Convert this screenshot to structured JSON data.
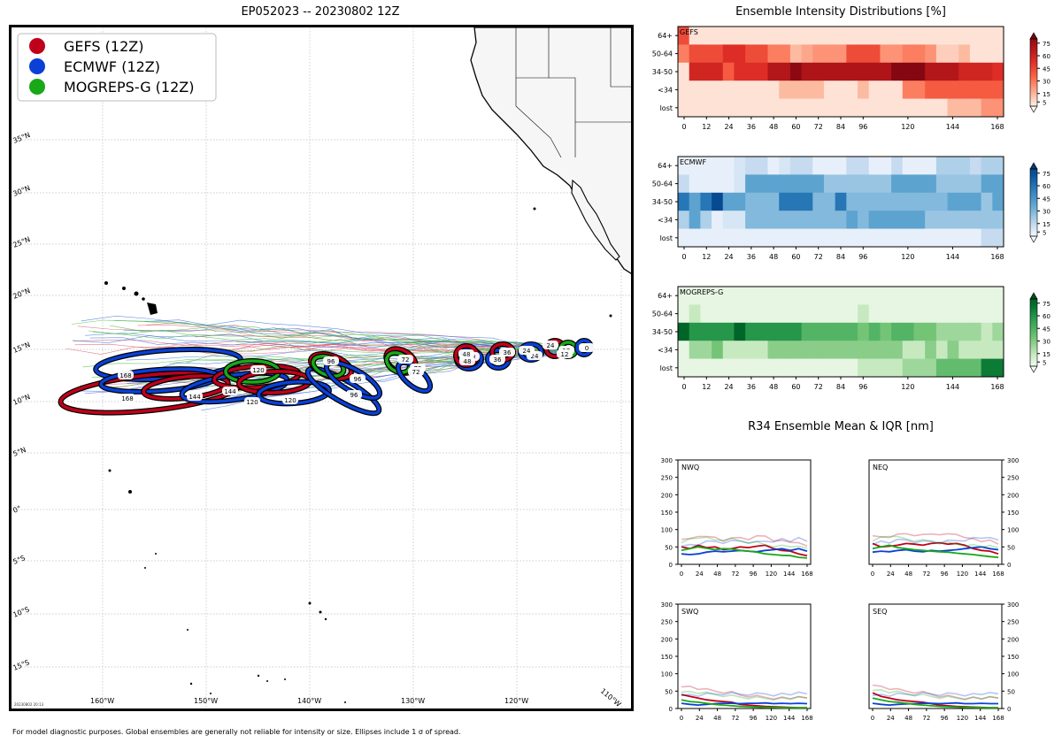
{
  "map": {
    "title": "EP052023 -- 20230802 12Z",
    "footer": "For model diagnostic purposes. Global ensembles are generally not reliable for intensity or size. Ellipses include 1 σ of spread.",
    "stamp": "20230802 20:13",
    "lat_labels": [
      "35°N",
      "30°N",
      "25°N",
      "20°N",
      "15°N",
      "10°N",
      "5°N",
      "0°",
      "5°S",
      "10°S",
      "15°S"
    ],
    "lon_labels": [
      "160°W",
      "150°W",
      "140°W",
      "130°W",
      "120°W",
      "110°W"
    ],
    "legend": [
      {
        "label": "GEFS (12Z)",
        "color": "#c0001a"
      },
      {
        "label": "ECMWF (12Z)",
        "color": "#0a40d6"
      },
      {
        "label": "MOGREPS-G (12Z)",
        "color": "#18a818"
      }
    ],
    "colors": {
      "gefs": "#c0001a",
      "ecmwf": "#0a40d6",
      "mogreps": "#18a818",
      "land": "#f6f6f6"
    },
    "track_labels": {
      "gefs": [
        "0",
        "12",
        "24",
        "36",
        "48",
        "72",
        "96",
        "120",
        "144",
        "168"
      ],
      "ecmwf": [
        "12",
        "24",
        "36",
        "48",
        "72",
        "96",
        "120",
        "144",
        "168"
      ],
      "mogreps": [
        "24",
        "48",
        "72",
        "96",
        "120"
      ]
    }
  },
  "intensity": {
    "title": "Ensemble Intensity Distributions [%]",
    "row_labels": [
      "64+",
      "50-64",
      "34-50",
      "<34",
      "lost"
    ],
    "x_ticks": [
      "0",
      "12",
      "24",
      "36",
      "48",
      "60",
      "72",
      "84",
      "96",
      "120",
      "144",
      "168"
    ],
    "x_tick_values": [
      0,
      12,
      24,
      36,
      48,
      60,
      72,
      84,
      96,
      120,
      144,
      168
    ],
    "colorbar_ticks": [
      "75",
      "60",
      "45",
      "30",
      "15",
      "5"
    ],
    "colorbar_values": [
      75,
      60,
      45,
      30,
      15,
      5
    ],
    "panels": [
      {
        "name": "GEFS",
        "cmap": "reds",
        "data": [
          [
            45,
            5,
            5,
            5,
            5,
            5,
            5,
            5,
            5,
            5,
            5,
            5,
            5,
            5,
            5,
            5,
            5,
            5,
            5,
            5,
            5,
            5,
            5,
            5,
            5,
            5,
            5,
            5,
            5
          ],
          [
            30,
            45,
            45,
            45,
            55,
            55,
            45,
            45,
            30,
            30,
            15,
            20,
            25,
            25,
            25,
            45,
            45,
            45,
            25,
            25,
            30,
            30,
            25,
            10,
            10,
            15,
            5,
            5,
            5
          ],
          [
            5,
            60,
            60,
            60,
            40,
            55,
            55,
            55,
            70,
            70,
            85,
            72,
            72,
            72,
            72,
            72,
            72,
            72,
            72,
            88,
            88,
            88,
            70,
            70,
            70,
            60,
            60,
            60,
            55
          ],
          [
            5,
            5,
            5,
            5,
            5,
            5,
            5,
            5,
            5,
            15,
            15,
            15,
            15,
            5,
            5,
            5,
            15,
            5,
            5,
            5,
            30,
            30,
            40,
            40,
            40,
            40,
            40,
            40,
            40
          ],
          [
            5,
            5,
            5,
            5,
            5,
            5,
            5,
            5,
            5,
            5,
            5,
            5,
            5,
            5,
            5,
            5,
            5,
            5,
            5,
            5,
            5,
            5,
            5,
            5,
            15,
            15,
            15,
            25,
            25
          ]
        ]
      },
      {
        "name": "ECMWF",
        "cmap": "blues",
        "data": [
          [
            5,
            5,
            5,
            5,
            5,
            10,
            15,
            15,
            5,
            10,
            15,
            15,
            5,
            5,
            5,
            15,
            15,
            5,
            5,
            15,
            5,
            5,
            5,
            20,
            20,
            20,
            15,
            20,
            20
          ],
          [
            15,
            5,
            5,
            5,
            5,
            10,
            40,
            40,
            40,
            40,
            40,
            40,
            40,
            25,
            25,
            25,
            25,
            25,
            25,
            40,
            40,
            40,
            40,
            25,
            25,
            25,
            25,
            40,
            40
          ],
          [
            60,
            40,
            60,
            80,
            40,
            40,
            30,
            30,
            30,
            60,
            60,
            60,
            30,
            30,
            60,
            30,
            30,
            30,
            30,
            30,
            30,
            30,
            30,
            30,
            40,
            40,
            40,
            25,
            40
          ],
          [
            20,
            40,
            20,
            5,
            10,
            10,
            30,
            30,
            30,
            30,
            30,
            30,
            30,
            30,
            30,
            40,
            30,
            40,
            40,
            40,
            40,
            40,
            25,
            25,
            25,
            25,
            25,
            25,
            25
          ],
          [
            5,
            5,
            5,
            5,
            5,
            5,
            5,
            5,
            5,
            5,
            5,
            5,
            5,
            5,
            5,
            5,
            5,
            5,
            5,
            5,
            5,
            5,
            5,
            5,
            5,
            5,
            5,
            15,
            15
          ]
        ]
      },
      {
        "name": "MOGREPS-G",
        "cmap": "greens",
        "data": [
          [
            5,
            5,
            5,
            5,
            5,
            5,
            5,
            5,
            5,
            5,
            5,
            5,
            5,
            5,
            5,
            5,
            5,
            5,
            5,
            5,
            5,
            5,
            5,
            5,
            5,
            5,
            5,
            5,
            5
          ],
          [
            5,
            15,
            5,
            5,
            5,
            5,
            5,
            5,
            5,
            5,
            5,
            5,
            5,
            5,
            5,
            5,
            15,
            5,
            5,
            5,
            5,
            5,
            5,
            5,
            5,
            5,
            5,
            5,
            5
          ],
          [
            80,
            60,
            60,
            60,
            60,
            80,
            60,
            60,
            60,
            60,
            60,
            45,
            45,
            45,
            45,
            45,
            35,
            45,
            35,
            45,
            45,
            35,
            35,
            25,
            25,
            25,
            25,
            15,
            25
          ],
          [
            5,
            25,
            25,
            35,
            15,
            15,
            15,
            15,
            30,
            30,
            30,
            30,
            30,
            30,
            30,
            30,
            30,
            30,
            30,
            30,
            15,
            15,
            30,
            15,
            30,
            15,
            15,
            15,
            15
          ],
          [
            5,
            5,
            5,
            5,
            5,
            5,
            5,
            5,
            5,
            5,
            5,
            5,
            5,
            5,
            5,
            5,
            15,
            15,
            15,
            15,
            25,
            25,
            25,
            40,
            40,
            40,
            40,
            70,
            70
          ]
        ]
      }
    ]
  },
  "r34": {
    "title": "R34 Ensemble Mean & IQR [nm]",
    "y_ticks": [
      "300",
      "250",
      "200",
      "150",
      "100",
      "50",
      "0"
    ],
    "y_tick_values": [
      300,
      250,
      200,
      150,
      100,
      50,
      0
    ],
    "x_ticks": [
      "0",
      "24",
      "48",
      "72",
      "96",
      "120",
      "144",
      "168"
    ],
    "x_tick_values": [
      0,
      24,
      48,
      72,
      96,
      120,
      144,
      168
    ],
    "panels": [
      {
        "name": "NWQ",
        "side": "left",
        "series": [
          {
            "model": "gefs",
            "values": [
              50,
              45,
              55,
              48,
              50,
              42,
              45,
              50,
              48,
              52,
              55,
              45,
              40,
              38,
              30,
              25
            ]
          },
          {
            "model": "ecmwf",
            "values": [
              30,
              28,
              30,
              35,
              38,
              36,
              38,
              40,
              38,
              36,
              40,
              42,
              45,
              40,
              45,
              38
            ]
          },
          {
            "model": "mogreps",
            "values": [
              40,
              45,
              50,
              46,
              42,
              45,
              44,
              40,
              38,
              35,
              30,
              28,
              26,
              25,
              20,
              18
            ]
          }
        ]
      },
      {
        "name": "NEQ",
        "side": "right",
        "series": [
          {
            "model": "gefs",
            "values": [
              60,
              50,
              52,
              55,
              60,
              58,
              55,
              60,
              62,
              58,
              60,
              55,
              45,
              40,
              38,
              30
            ]
          },
          {
            "model": "ecmwf",
            "values": [
              35,
              38,
              36,
              40,
              42,
              38,
              36,
              40,
              38,
              40,
              42,
              45,
              48,
              50,
              45,
              42
            ]
          },
          {
            "model": "mogreps",
            "values": [
              45,
              50,
              55,
              48,
              45,
              42,
              40,
              38,
              36,
              35,
              32,
              30,
              28,
              25,
              22,
              20
            ]
          }
        ]
      },
      {
        "name": "SWQ",
        "side": "left",
        "series": [
          {
            "model": "gefs",
            "values": [
              40,
              35,
              30,
              25,
              22,
              20,
              18,
              12,
              10,
              8,
              6,
              5,
              4,
              3,
              2,
              2
            ]
          },
          {
            "model": "ecmwf",
            "values": [
              15,
              12,
              10,
              12,
              14,
              15,
              15,
              14,
              15,
              15,
              16,
              14,
              15,
              14,
              15,
              14
            ]
          },
          {
            "model": "mogreps",
            "values": [
              25,
              20,
              18,
              15,
              12,
              10,
              8,
              6,
              5,
              4,
              3,
              3,
              2,
              2,
              2,
              2
            ]
          }
        ]
      },
      {
        "name": "SEQ",
        "side": "right",
        "series": [
          {
            "model": "gefs",
            "values": [
              45,
              35,
              30,
              25,
              22,
              20,
              18,
              14,
              10,
              8,
              6,
              5,
              4,
              3,
              2,
              2
            ]
          },
          {
            "model": "ecmwf",
            "values": [
              15,
              12,
              10,
              12,
              13,
              14,
              15,
              15,
              14,
              15,
              16,
              14,
              14,
              15,
              14,
              14
            ]
          },
          {
            "model": "mogreps",
            "values": [
              30,
              25,
              20,
              18,
              15,
              12,
              10,
              8,
              6,
              5,
              4,
              3,
              3,
              2,
              2,
              2
            ]
          }
        ]
      }
    ]
  },
  "chart_data": [
    {
      "type": "heatmap",
      "title": "Ensemble Intensity Distributions [%] - GEFS",
      "rows": [
        "64+",
        "50-64",
        "34-50",
        "<34",
        "lost"
      ],
      "x_range": [
        0,
        168
      ]
    },
    {
      "type": "heatmap",
      "title": "Ensemble Intensity Distributions [%] - ECMWF",
      "rows": [
        "64+",
        "50-64",
        "34-50",
        "<34",
        "lost"
      ],
      "x_range": [
        0,
        168
      ]
    },
    {
      "type": "heatmap",
      "title": "Ensemble Intensity Distributions [%] - MOGREPS-G",
      "rows": [
        "64+",
        "50-64",
        "34-50",
        "<34",
        "lost"
      ],
      "x_range": [
        0,
        168
      ]
    },
    {
      "type": "line",
      "title": "R34 Ensemble Mean & IQR [nm]",
      "panels": [
        "NWQ",
        "NEQ",
        "SWQ",
        "SEQ"
      ],
      "ylim": [
        0,
        300
      ],
      "xlim": [
        0,
        168
      ]
    }
  ]
}
